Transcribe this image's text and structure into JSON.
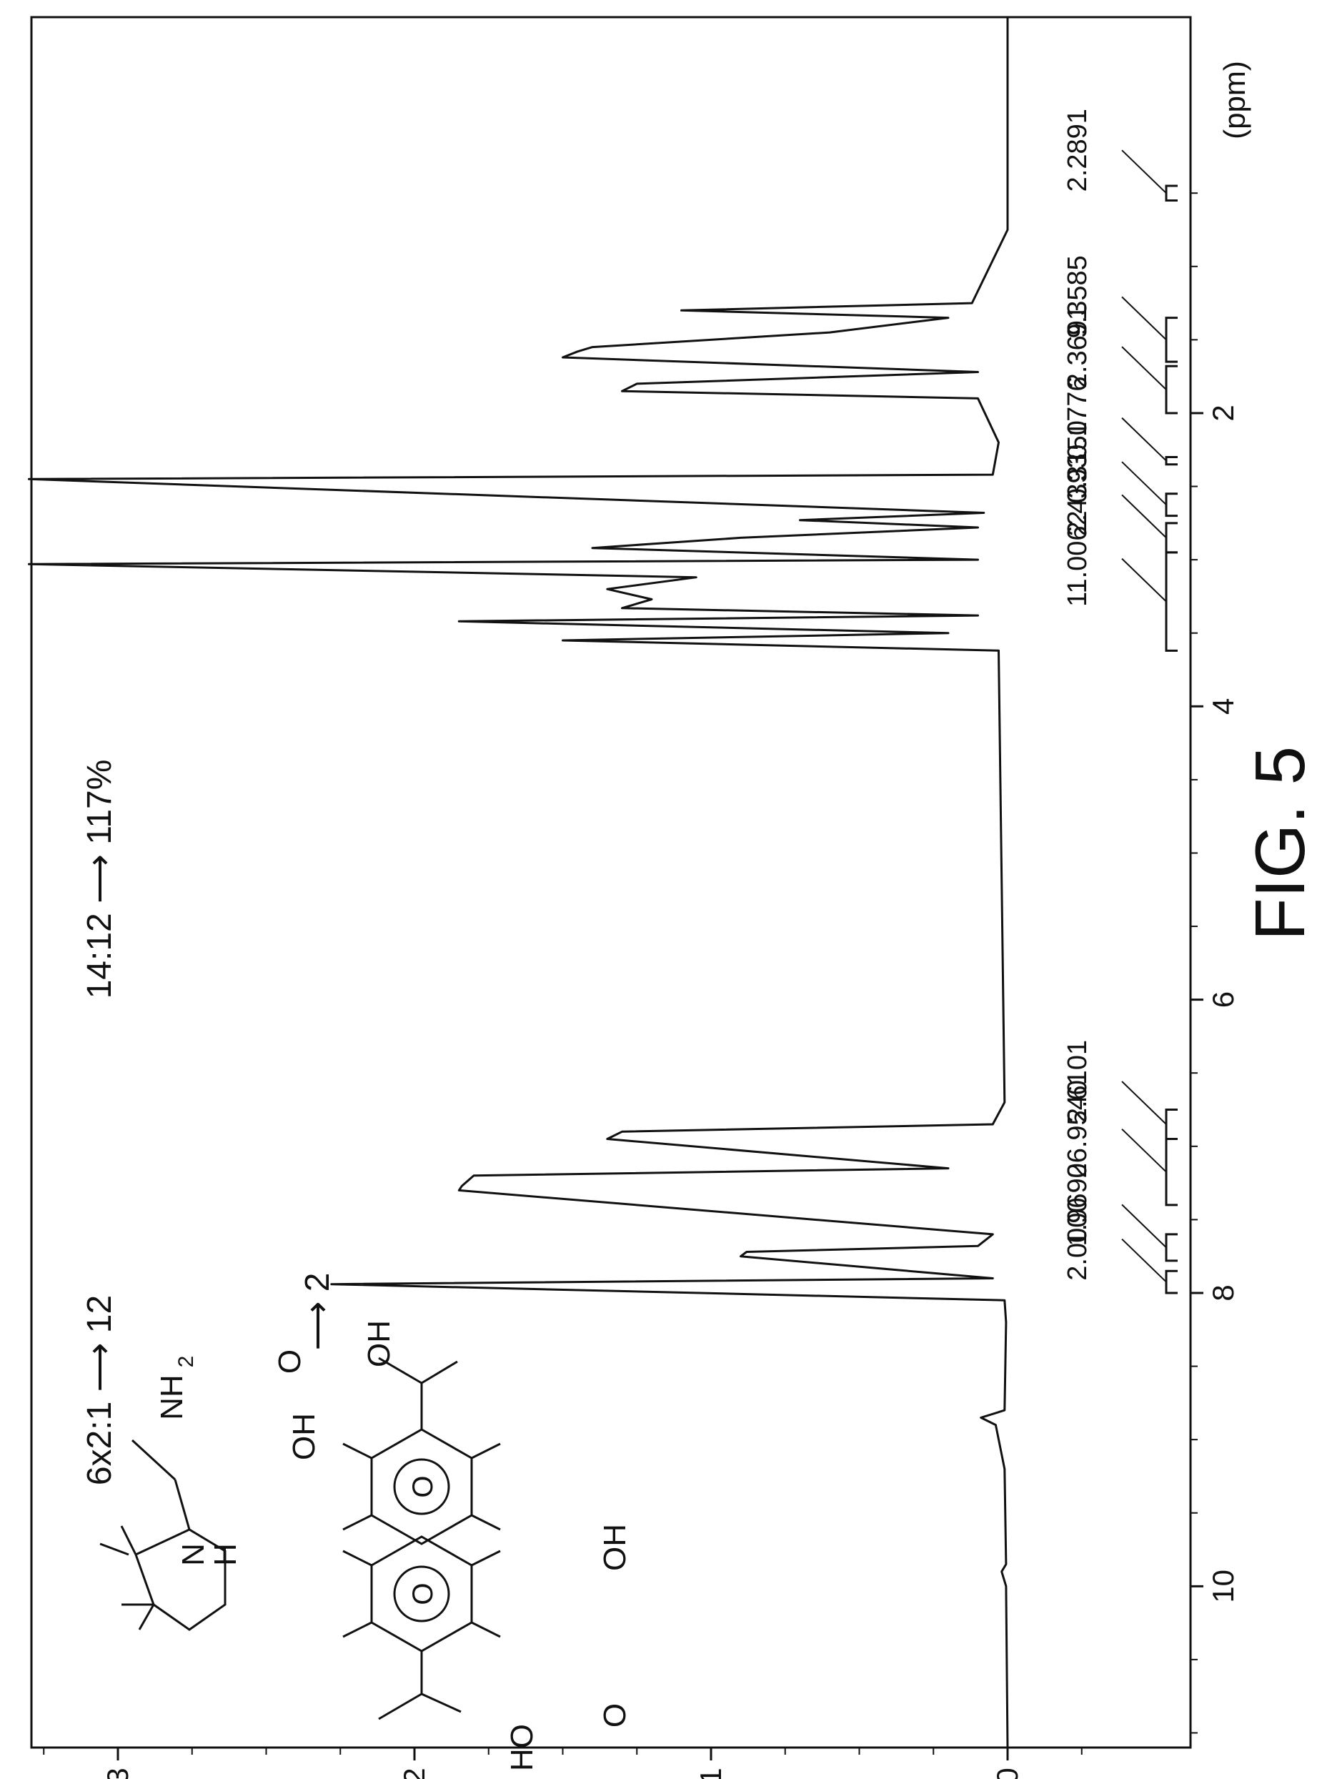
{
  "chart_data": {
    "type": "line",
    "title": "",
    "xlabel": "(ppm)",
    "ylabel": "",
    "xlim": [
      11.1,
      -0.7
    ],
    "ylim": [
      -0.08,
      3.3
    ],
    "x_ticks": [
      "2",
      "4",
      "6",
      "8",
      "10"
    ],
    "y_ticks": [
      "0",
      "1",
      "2",
      "3"
    ],
    "grid": false,
    "series": [
      {
        "values": [
          [
            11.1,
            0.0
          ],
          [
            10.0,
            0.005
          ],
          [
            9.9,
            0.02
          ],
          [
            9.85,
            0.005
          ],
          [
            9.2,
            0.01
          ],
          [
            8.9,
            0.04
          ],
          [
            8.85,
            0.09
          ],
          [
            8.8,
            0.01
          ],
          [
            8.2,
            0.005
          ],
          [
            8.05,
            0.01
          ],
          [
            7.94,
            2.28
          ],
          [
            7.9,
            0.05
          ],
          [
            7.75,
            0.9
          ],
          [
            7.72,
            0.88
          ],
          [
            7.68,
            0.1
          ],
          [
            7.6,
            0.05
          ],
          [
            7.3,
            1.85
          ],
          [
            7.27,
            1.84
          ],
          [
            7.2,
            1.8
          ],
          [
            7.15,
            0.2
          ],
          [
            6.95,
            1.35
          ],
          [
            6.9,
            1.3
          ],
          [
            6.85,
            0.05
          ],
          [
            6.7,
            0.01
          ],
          [
            3.62,
            0.03
          ],
          [
            3.55,
            1.5
          ],
          [
            3.5,
            0.2
          ],
          [
            3.42,
            1.85
          ],
          [
            3.38,
            0.1
          ],
          [
            3.33,
            1.3
          ],
          [
            3.27,
            1.2
          ],
          [
            3.2,
            1.35
          ],
          [
            3.12,
            1.05
          ],
          [
            3.03,
            3.3
          ],
          [
            3.0,
            0.1
          ],
          [
            2.92,
            1.4
          ],
          [
            2.85,
            0.9
          ],
          [
            2.78,
            0.1
          ],
          [
            2.73,
            0.7
          ],
          [
            2.68,
            0.08
          ],
          [
            2.45,
            3.3
          ],
          [
            2.42,
            0.05
          ],
          [
            2.2,
            0.03
          ],
          [
            1.9,
            0.1
          ],
          [
            1.85,
            1.3
          ],
          [
            1.8,
            1.25
          ],
          [
            1.72,
            0.1
          ],
          [
            1.62,
            1.5
          ],
          [
            1.58,
            1.45
          ],
          [
            1.55,
            1.4
          ],
          [
            1.45,
            0.6
          ],
          [
            1.35,
            0.2
          ],
          [
            1.3,
            1.1
          ],
          [
            1.25,
            0.12
          ],
          [
            0.75,
            0.0
          ],
          [
            -0.7,
            0.0
          ]
        ]
      }
    ],
    "integrals": [
      {
        "label": "2.2891",
        "x1": 0.55,
        "x2": 0.45
      },
      {
        "label": "9.3585",
        "x1": 1.65,
        "x2": 1.35
      },
      {
        "label": "2.3691",
        "x1": 2.0,
        "x2": 1.68
      },
      {
        "label": "0.1776",
        "x1": 2.35,
        "x2": 2.3
      },
      {
        "label": "0.3150",
        "x1": 2.7,
        "x2": 2.55
      },
      {
        "label": "2.4393",
        "x1": 2.95,
        "x2": 2.75
      },
      {
        "label": "11.0062",
        "x1": 3.62,
        "x2": 2.95
      },
      {
        "label": "2.6101",
        "x1": 6.95,
        "x2": 6.75
      },
      {
        "label": "26.9540",
        "x1": 7.4,
        "x2": 6.95
      },
      {
        "label": "1.9690",
        "x1": 7.78,
        "x2": 7.6
      },
      {
        "label": "2.0000",
        "x1": 8.0,
        "x2": 7.85
      }
    ],
    "annotations": {
      "ratio_top": "14:12 ⟶ 117%",
      "ratio_amine": "6x2:1 ⟶ 12",
      "ratio_acid": "⟶ 2",
      "struct_nh2": "NH",
      "struct_nh2_sub": "2",
      "struct_n": "N",
      "struct_h": "H",
      "struct_oh_top": "OH",
      "struct_o_top": "O",
      "struct_oh_top2": "OH",
      "struct_ring_o1": "O",
      "struct_ring_o2": "O",
      "struct_oh_mid": "OH",
      "struct_o_bottom": "O",
      "struct_ho_bottom": "HO"
    },
    "figure_label": "FIG. 5"
  }
}
